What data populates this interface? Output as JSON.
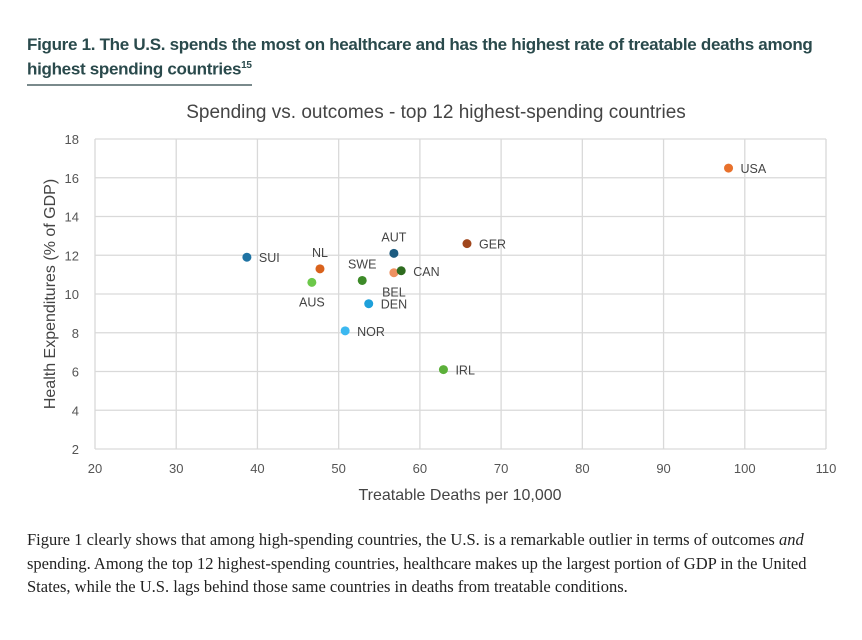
{
  "figure": {
    "title": "Figure 1. The U.S. spends the most on healthcare and has the highest rate of treatable deaths among highest spending countries",
    "footnote": "15"
  },
  "chart_data": {
    "type": "scatter",
    "title": "Spending vs. outcomes - top 12 highest-spending countries",
    "xlabel": "Treatable Deaths per 10,000",
    "ylabel": "Health Expenditures (% of GDP)",
    "xlim": [
      20,
      110
    ],
    "ylim": [
      2,
      18
    ],
    "xticks": [
      "20",
      "30",
      "40",
      "50",
      "60",
      "70",
      "80",
      "90",
      "100",
      "110"
    ],
    "yticks": [
      "2",
      "4",
      "6",
      "8",
      "10",
      "12",
      "14",
      "16",
      "18"
    ],
    "grid": true,
    "points": [
      {
        "label": "USA",
        "x": 98,
        "y": 16.5,
        "color": "#e8712c",
        "pos": "right"
      },
      {
        "label": "SUI",
        "x": 38.7,
        "y": 11.9,
        "color": "#1f73a3",
        "pos": "right"
      },
      {
        "label": "NL",
        "x": 47.7,
        "y": 11.3,
        "color": "#d9621c",
        "pos": "above"
      },
      {
        "label": "AUS",
        "x": 46.7,
        "y": 10.6,
        "color": "#6cc84a",
        "pos": "below"
      },
      {
        "label": "SWE",
        "x": 52.9,
        "y": 10.7,
        "color": "#3d8a28",
        "pos": "above"
      },
      {
        "label": "AUT",
        "x": 56.8,
        "y": 12.1,
        "color": "#1d5c80",
        "pos": "above"
      },
      {
        "label": "BEL",
        "x": 56.8,
        "y": 11.1,
        "color": "#ee9160",
        "pos": "below"
      },
      {
        "label": "CAN",
        "x": 57.7,
        "y": 11.2,
        "color": "#2e6b1e",
        "pos": "right"
      },
      {
        "label": "DEN",
        "x": 53.7,
        "y": 9.5,
        "color": "#1ea0da",
        "pos": "right"
      },
      {
        "label": "NOR",
        "x": 50.8,
        "y": 8.1,
        "color": "#3cb8f0",
        "pos": "right"
      },
      {
        "label": "GER",
        "x": 65.8,
        "y": 12.6,
        "color": "#a0461c",
        "pos": "right"
      },
      {
        "label": "IRL",
        "x": 62.9,
        "y": 6.1,
        "color": "#5cb03a",
        "pos": "right"
      }
    ]
  },
  "body": "Figure 1 clearly shows that among high-spending countries, the U.S. is a remarkable outlier in terms of outcomes and spending. Among the top 12 highest-spending countries, healthcare makes up the largest portion of GDP in the United States, while the U.S. lags behind those same countries in deaths from treatable conditions."
}
